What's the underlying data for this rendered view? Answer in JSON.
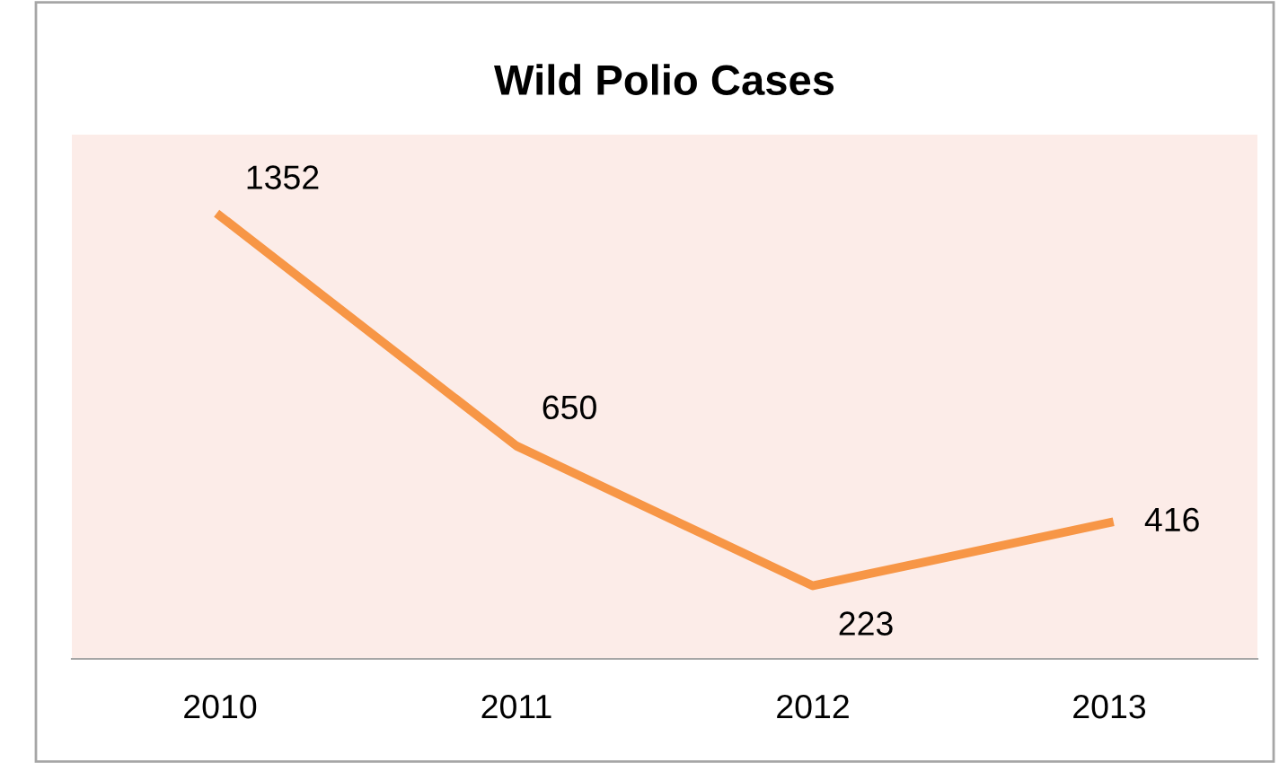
{
  "chart_data": {
    "type": "line",
    "title": "Wild Polio Cases",
    "categories": [
      "2010",
      "2011",
      "2012",
      "2013"
    ],
    "series": [
      {
        "color": "#f79646",
        "values": [
          1352,
          650,
          223,
          416
        ]
      }
    ],
    "ylim": [
      0,
      1600
    ],
    "tick_labels": "x",
    "data_labels": true,
    "grid": false,
    "legend": false,
    "marker": "none",
    "line_style": "solid"
  }
}
